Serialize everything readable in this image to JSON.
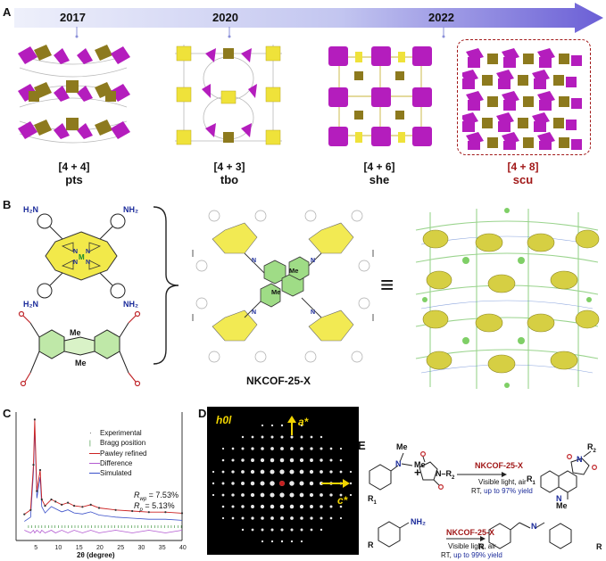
{
  "panel_a": {
    "label": "A",
    "years": [
      "2017",
      "2020",
      "2022"
    ],
    "structures": [
      {
        "bracket": "[4 + 4]",
        "topology": "pts"
      },
      {
        "bracket": "[4 + 3]",
        "topology": "tbo"
      },
      {
        "bracket": "[4 + 6]",
        "topology": "she"
      },
      {
        "bracket": "[4 + 8]",
        "topology": "scu"
      }
    ]
  },
  "panel_b": {
    "label": "B",
    "porphyrin_nh2": [
      "H₂N",
      "NH₂",
      "H₂N",
      "NH₂"
    ],
    "metal": "M",
    "methyl": [
      "Me",
      "Me"
    ],
    "product_methyl": [
      "Me",
      "Me"
    ],
    "product_name": "NKCOF-25-X",
    "equiv_symbol": "≡"
  },
  "panel_c": {
    "label": "C",
    "legend": [
      "Experimental",
      "Bragg position",
      "Pawley refined",
      "Difference",
      "Simulated"
    ],
    "rwp": "R",
    "rwp_sub": "wp",
    "rwp_val": " = 7.53%",
    "rp": "R",
    "rp_sub": "p",
    "rp_val": " = 5.13%",
    "xlabel": "2θ (degree)",
    "xticks": [
      "5",
      "10",
      "15",
      "20",
      "25",
      "30",
      "35",
      "40"
    ]
  },
  "panel_d": {
    "label": "D",
    "plane": "h0l",
    "axis_a": "a*",
    "axis_c": "c*"
  },
  "panel_e": {
    "label": "E",
    "r1": "R",
    "r1_sub": "1",
    "me_labels": [
      "Me",
      "Me"
    ],
    "plus": "+",
    "n_r2": "N–R",
    "r2_sub": "2",
    "catalyst_1": "NKCOF-25-X",
    "cond_1a": "Visible light, air",
    "cond_1b_plain": "RT, ",
    "cond_1b_blue": "up to 97% yield",
    "product1_r2": "R",
    "product1_r2_sub": "2",
    "product1_r1": "R",
    "product1_r1_sub": "1",
    "product1_me": "Me",
    "amine_r": "R",
    "nh2": "NH₂",
    "catalyst_2": "NKCOF-25-X",
    "cond_2a": "Visible light, air",
    "cond_2b_plain": "RT, ",
    "cond_2b_blue": "up to 99% yield",
    "product2_r_left": "R",
    "product2_r_right": "R",
    "product2_n": "N"
  },
  "chart_data": {
    "type": "line",
    "x": [
      2,
      3.5,
      4.2,
      4.5,
      5,
      5.8,
      6.2,
      7,
      8.5,
      9.5,
      11,
      12.5,
      14,
      16,
      18,
      20,
      24,
      28,
      32,
      36,
      40
    ],
    "series": [
      {
        "name": "Experimental",
        "values": [
          0.08,
          0.12,
          0.55,
          0.98,
          0.3,
          0.5,
          0.22,
          0.16,
          0.22,
          0.2,
          0.17,
          0.19,
          0.16,
          0.15,
          0.17,
          0.14,
          0.12,
          0.11,
          0.1,
          0.1,
          0.09
        ]
      }
    ],
    "xlabel": "2θ (degree)",
    "xlim": [
      0,
      40
    ],
    "ylim": [
      0,
      1
    ]
  },
  "colors": {
    "arrow_start": "#eef0fb",
    "arrow_end": "#6b5fd6",
    "brass": "#8d7a1e",
    "yellow": "#efe23a",
    "magenta": "#b41dbd",
    "red_label": "#a11818",
    "blue_text": "#1a2a9a",
    "green": "#5cc24a"
  }
}
